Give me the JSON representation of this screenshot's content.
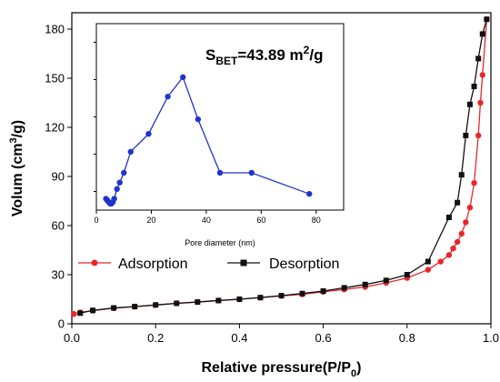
{
  "chart_data": [
    {
      "type": "line",
      "xlabel": "Relative pressure(P/P",
      "xlabel_sub": "0",
      "xlabel_end": ")",
      "ylabel": "Volum (cm",
      "ylabel_sup": "3",
      "ylabel_end": "/g)",
      "xlim": [
        0,
        1.0
      ],
      "ylim": [
        0,
        190
      ],
      "xticks": [
        "0.0",
        "0.2",
        "0.4",
        "0.6",
        "0.8",
        "1.0"
      ],
      "yticks": [
        "0",
        "30",
        "60",
        "90",
        "120",
        "150",
        "180"
      ],
      "legend_position": "lower-left",
      "series": [
        {
          "name": "Adsorption",
          "color": "#e8262b",
          "marker": "circle",
          "x": [
            0.005,
            0.02,
            0.05,
            0.1,
            0.15,
            0.2,
            0.25,
            0.3,
            0.35,
            0.4,
            0.45,
            0.5,
            0.55,
            0.6,
            0.65,
            0.7,
            0.75,
            0.8,
            0.85,
            0.88,
            0.9,
            0.91,
            0.92,
            0.93,
            0.94,
            0.95,
            0.96,
            0.97,
            0.975,
            0.98,
            0.99
          ],
          "y": [
            6,
            7,
            8,
            9.5,
            10.5,
            11.5,
            12.5,
            13.3,
            14.2,
            15,
            16,
            17,
            18,
            19.5,
            21,
            22.5,
            25,
            28,
            33,
            38,
            42,
            46,
            50,
            55,
            62,
            71,
            86,
            115,
            135,
            152,
            186
          ]
        },
        {
          "name": "Desorption",
          "color": "#111111",
          "marker": "square",
          "x": [
            0.99,
            0.98,
            0.97,
            0.96,
            0.95,
            0.94,
            0.93,
            0.92,
            0.9,
            0.85,
            0.8,
            0.75,
            0.7,
            0.65,
            0.6,
            0.55,
            0.5,
            0.45,
            0.4,
            0.35,
            0.3,
            0.25,
            0.2,
            0.15,
            0.1,
            0.05,
            0.02
          ],
          "y": [
            186,
            177,
            162,
            145,
            134,
            115,
            91,
            74,
            65,
            38,
            30,
            26.5,
            24,
            22,
            20,
            18.5,
            17.2,
            16,
            15,
            14.2,
            13.3,
            12.5,
            11.5,
            10.5,
            9.7,
            8.2,
            6.5
          ]
        }
      ]
    },
    {
      "type": "line",
      "xlabel": "Pore diameter (nm)",
      "ylabel": "",
      "xlim": [
        0,
        90
      ],
      "ylim": [
        70,
        185
      ],
      "xticks": [
        "0",
        "20",
        "40",
        "60",
        "80"
      ],
      "annotation": {
        "main": "S",
        "sub": "BET",
        "value": "=43.89 m",
        "sup": "2",
        "unit": "/g"
      },
      "series": [
        {
          "color": "#2233cc",
          "marker": "circle",
          "x": [
            3.5,
            4,
            4.5,
            5,
            5.5,
            6,
            6.5,
            7.5,
            8.5,
            10,
            12.5,
            19,
            26,
            31.5,
            37,
            45,
            56.5,
            77.5
          ],
          "y": [
            77,
            76,
            75,
            74,
            74,
            75,
            77,
            83,
            87,
            93,
            106,
            117,
            140,
            152,
            126,
            93,
            93,
            80
          ]
        }
      ]
    }
  ]
}
